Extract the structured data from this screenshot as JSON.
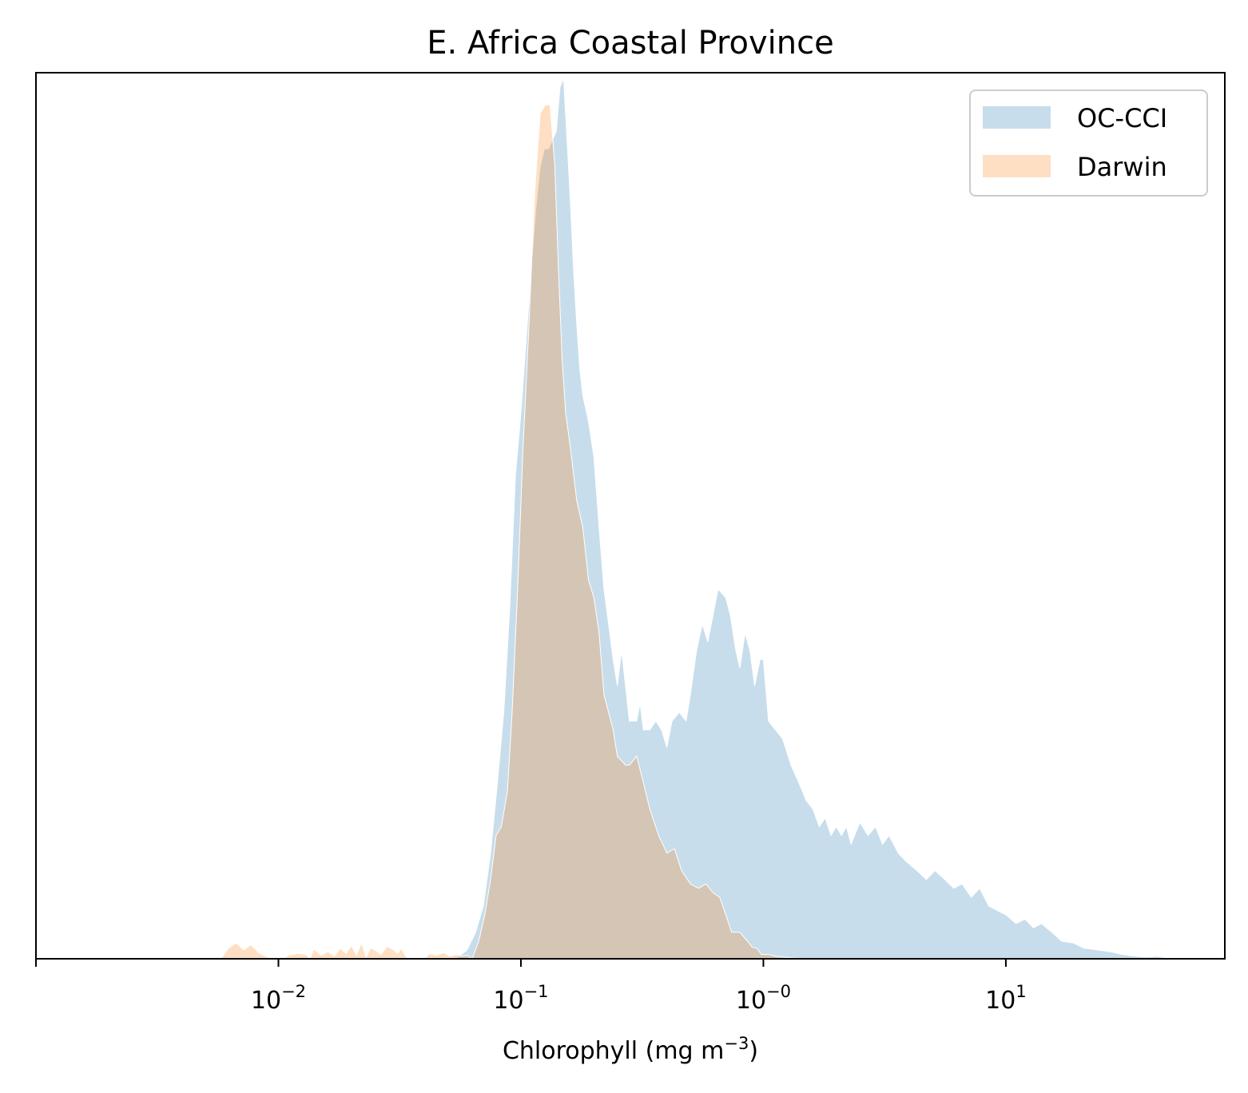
{
  "chart_data": {
    "type": "area",
    "title": "E. Africa Coastal Province",
    "xlabel": {
      "prefix": "Chlorophyll  (mg m",
      "superscript": "−3",
      "suffix": ")"
    },
    "ylabel": "",
    "x_scale": "log",
    "xlim": [
      0.001,
      80
    ],
    "y_ticks_shown": false,
    "ylim": [
      0,
      1.0
    ],
    "grid": false,
    "legend_position": "top-right",
    "x_ticks": [
      {
        "value": 0.01,
        "base": "10",
        "exp": "−2"
      },
      {
        "value": 0.1,
        "base": "10",
        "exp": "−1"
      },
      {
        "value": 1,
        "base": "10",
        "exp": "−0"
      },
      {
        "value": 10,
        "base": "10",
        "exp": "1"
      }
    ],
    "series": [
      {
        "name": "OC-CCI",
        "color": "#1f77b4",
        "opacity": 0.25,
        "points": [
          [
            0.05,
            0.0
          ],
          [
            0.055,
            0.002
          ],
          [
            0.06,
            0.01
          ],
          [
            0.065,
            0.03
          ],
          [
            0.07,
            0.06
          ],
          [
            0.075,
            0.12
          ],
          [
            0.08,
            0.2
          ],
          [
            0.085,
            0.28
          ],
          [
            0.09,
            0.4
          ],
          [
            0.095,
            0.55
          ],
          [
            0.1,
            0.62
          ],
          [
            0.105,
            0.7
          ],
          [
            0.11,
            0.78
          ],
          [
            0.115,
            0.85
          ],
          [
            0.12,
            0.9
          ],
          [
            0.125,
            0.92
          ],
          [
            0.13,
            0.92
          ],
          [
            0.135,
            0.93
          ],
          [
            0.14,
            0.94
          ],
          [
            0.145,
            0.99
          ],
          [
            0.15,
            1.0
          ],
          [
            0.155,
            0.93
          ],
          [
            0.16,
            0.86
          ],
          [
            0.165,
            0.78
          ],
          [
            0.17,
            0.72
          ],
          [
            0.175,
            0.67
          ],
          [
            0.18,
            0.64
          ],
          [
            0.19,
            0.61
          ],
          [
            0.2,
            0.57
          ],
          [
            0.21,
            0.49
          ],
          [
            0.22,
            0.42
          ],
          [
            0.23,
            0.38
          ],
          [
            0.24,
            0.34
          ],
          [
            0.25,
            0.31
          ],
          [
            0.26,
            0.35
          ],
          [
            0.27,
            0.31
          ],
          [
            0.28,
            0.27
          ],
          [
            0.3,
            0.27
          ],
          [
            0.31,
            0.29
          ],
          [
            0.32,
            0.26
          ],
          [
            0.34,
            0.26
          ],
          [
            0.36,
            0.27
          ],
          [
            0.38,
            0.26
          ],
          [
            0.4,
            0.24
          ],
          [
            0.42,
            0.27
          ],
          [
            0.45,
            0.28
          ],
          [
            0.48,
            0.27
          ],
          [
            0.5,
            0.3
          ],
          [
            0.53,
            0.35
          ],
          [
            0.56,
            0.38
          ],
          [
            0.59,
            0.36
          ],
          [
            0.62,
            0.39
          ],
          [
            0.65,
            0.42
          ],
          [
            0.7,
            0.41
          ],
          [
            0.73,
            0.39
          ],
          [
            0.77,
            0.35
          ],
          [
            0.8,
            0.33
          ],
          [
            0.84,
            0.37
          ],
          [
            0.88,
            0.35
          ],
          [
            0.92,
            0.31
          ],
          [
            0.97,
            0.34
          ],
          [
            1.0,
            0.34
          ],
          [
            1.05,
            0.27
          ],
          [
            1.12,
            0.26
          ],
          [
            1.2,
            0.25
          ],
          [
            1.3,
            0.22
          ],
          [
            1.4,
            0.2
          ],
          [
            1.5,
            0.18
          ],
          [
            1.6,
            0.17
          ],
          [
            1.7,
            0.15
          ],
          [
            1.8,
            0.16
          ],
          [
            1.9,
            0.14
          ],
          [
            2.0,
            0.15
          ],
          [
            2.1,
            0.14
          ],
          [
            2.2,
            0.15
          ],
          [
            2.3,
            0.13
          ],
          [
            2.5,
            0.155
          ],
          [
            2.7,
            0.14
          ],
          [
            2.9,
            0.15
          ],
          [
            3.1,
            0.13
          ],
          [
            3.3,
            0.14
          ],
          [
            3.6,
            0.12
          ],
          [
            3.9,
            0.11
          ],
          [
            4.3,
            0.1
          ],
          [
            4.7,
            0.09
          ],
          [
            5.1,
            0.1
          ],
          [
            5.6,
            0.09
          ],
          [
            6.1,
            0.08
          ],
          [
            6.6,
            0.085
          ],
          [
            7.2,
            0.07
          ],
          [
            7.8,
            0.08
          ],
          [
            8.5,
            0.06
          ],
          [
            9.2,
            0.055
          ],
          [
            10.0,
            0.05
          ],
          [
            11.0,
            0.04
          ],
          [
            12.0,
            0.045
          ],
          [
            13.0,
            0.035
          ],
          [
            14.0,
            0.04
          ],
          [
            15.5,
            0.03
          ],
          [
            17.0,
            0.02
          ],
          [
            19.0,
            0.018
          ],
          [
            21.0,
            0.012
          ],
          [
            24.0,
            0.01
          ],
          [
            27.0,
            0.008
          ],
          [
            30.0,
            0.005
          ],
          [
            34.0,
            0.003
          ],
          [
            38.0,
            0.002
          ],
          [
            42.0,
            0.003
          ],
          [
            46.0,
            0.001
          ],
          [
            52.0,
            0.001
          ],
          [
            58.0,
            0.0
          ]
        ]
      },
      {
        "name": "Darwin",
        "color": "#ff7f0e",
        "opacity": 0.25,
        "points": [
          [
            0.0058,
            0.0
          ],
          [
            0.0062,
            0.012
          ],
          [
            0.0067,
            0.018
          ],
          [
            0.0072,
            0.01
          ],
          [
            0.0077,
            0.016
          ],
          [
            0.0083,
            0.007
          ],
          [
            0.009,
            0.002
          ],
          [
            0.0095,
            0.0
          ],
          [
            0.0105,
            0.0
          ],
          [
            0.011,
            0.004
          ],
          [
            0.012,
            0.006
          ],
          [
            0.013,
            0.005
          ],
          [
            0.0135,
            0.0
          ],
          [
            0.014,
            0.011
          ],
          [
            0.015,
            0.004
          ],
          [
            0.016,
            0.008
          ],
          [
            0.017,
            0.003
          ],
          [
            0.018,
            0.012
          ],
          [
            0.019,
            0.006
          ],
          [
            0.02,
            0.015
          ],
          [
            0.021,
            0.004
          ],
          [
            0.022,
            0.018
          ],
          [
            0.023,
            0.002
          ],
          [
            0.024,
            0.012
          ],
          [
            0.025,
            0.01
          ],
          [
            0.0265,
            0.005
          ],
          [
            0.028,
            0.014
          ],
          [
            0.03,
            0.01
          ],
          [
            0.031,
            0.006
          ],
          [
            0.032,
            0.012
          ],
          [
            0.034,
            0.0
          ],
          [
            0.036,
            0.0
          ],
          [
            0.04,
            0.0
          ],
          [
            0.042,
            0.006
          ],
          [
            0.045,
            0.004
          ],
          [
            0.048,
            0.007
          ],
          [
            0.051,
            0.003
          ],
          [
            0.054,
            0.005
          ],
          [
            0.057,
            0.003
          ],
          [
            0.06,
            0.004
          ],
          [
            0.063,
            0.0
          ],
          [
            0.067,
            0.02
          ],
          [
            0.071,
            0.05
          ],
          [
            0.075,
            0.09
          ],
          [
            0.079,
            0.14
          ],
          [
            0.083,
            0.15
          ],
          [
            0.088,
            0.19
          ],
          [
            0.092,
            0.28
          ],
          [
            0.097,
            0.42
          ],
          [
            0.102,
            0.58
          ],
          [
            0.108,
            0.72
          ],
          [
            0.114,
            0.87
          ],
          [
            0.12,
            0.96
          ],
          [
            0.126,
            0.97
          ],
          [
            0.132,
            0.97
          ],
          [
            0.138,
            0.9
          ],
          [
            0.143,
            0.78
          ],
          [
            0.148,
            0.68
          ],
          [
            0.153,
            0.62
          ],
          [
            0.16,
            0.58
          ],
          [
            0.17,
            0.52
          ],
          [
            0.18,
            0.49
          ],
          [
            0.19,
            0.43
          ],
          [
            0.2,
            0.41
          ],
          [
            0.21,
            0.37
          ],
          [
            0.22,
            0.3
          ],
          [
            0.24,
            0.26
          ],
          [
            0.25,
            0.23
          ],
          [
            0.27,
            0.22
          ],
          [
            0.28,
            0.22
          ],
          [
            0.3,
            0.23
          ],
          [
            0.32,
            0.2
          ],
          [
            0.34,
            0.17
          ],
          [
            0.37,
            0.14
          ],
          [
            0.4,
            0.12
          ],
          [
            0.43,
            0.125
          ],
          [
            0.46,
            0.1
          ],
          [
            0.5,
            0.085
          ],
          [
            0.54,
            0.08
          ],
          [
            0.58,
            0.085
          ],
          [
            0.62,
            0.075
          ],
          [
            0.66,
            0.07
          ],
          [
            0.7,
            0.05
          ],
          [
            0.74,
            0.03
          ],
          [
            0.8,
            0.03
          ],
          [
            0.86,
            0.02
          ],
          [
            0.9,
            0.013
          ],
          [
            0.94,
            0.012
          ],
          [
            0.98,
            0.005
          ],
          [
            1.05,
            0.005
          ],
          [
            1.12,
            0.003
          ],
          [
            1.2,
            0.002
          ],
          [
            1.4,
            0.0
          ]
        ]
      }
    ]
  }
}
